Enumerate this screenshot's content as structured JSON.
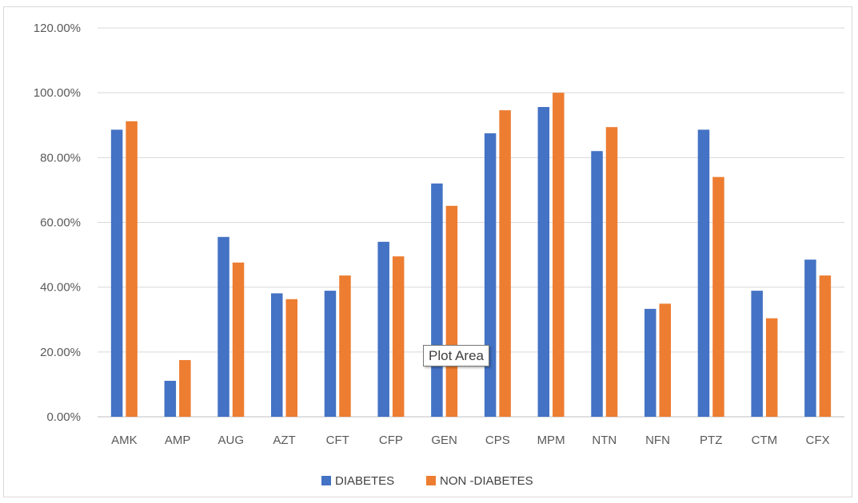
{
  "chart_data": {
    "type": "bar",
    "title": "",
    "xlabel": "",
    "ylabel": "",
    "categories": [
      "AMK",
      "AMP",
      "AUG",
      "AZT",
      "CFT",
      "CFP",
      "GEN",
      "CPS",
      "MPM",
      "NTN",
      "NFN",
      "PTZ",
      "CTM",
      "CFX"
    ],
    "series": [
      {
        "name": "DIABETES",
        "color": "#4472C4",
        "values": [
          88.6,
          11.1,
          55.5,
          38.1,
          38.9,
          54.0,
          72.0,
          87.5,
          95.6,
          82.0,
          33.3,
          88.6,
          38.9,
          48.5
        ]
      },
      {
        "name": "NON -DIABETES",
        "color": "#ED7D31",
        "values": [
          91.2,
          17.5,
          47.6,
          36.3,
          43.6,
          49.5,
          65.1,
          94.6,
          100.0,
          89.4,
          34.9,
          74.0,
          30.4,
          43.6
        ]
      }
    ],
    "ylim": [
      0,
      120
    ],
    "yticks": [
      0,
      20,
      40,
      60,
      80,
      100,
      120
    ],
    "ytick_labels": [
      "0.00%",
      "20.00%",
      "40.00%",
      "60.00%",
      "80.00%",
      "100.00%",
      "120.00%"
    ],
    "grid": true,
    "legend_position": "bottom"
  },
  "tooltip": {
    "text": "Plot Area"
  }
}
